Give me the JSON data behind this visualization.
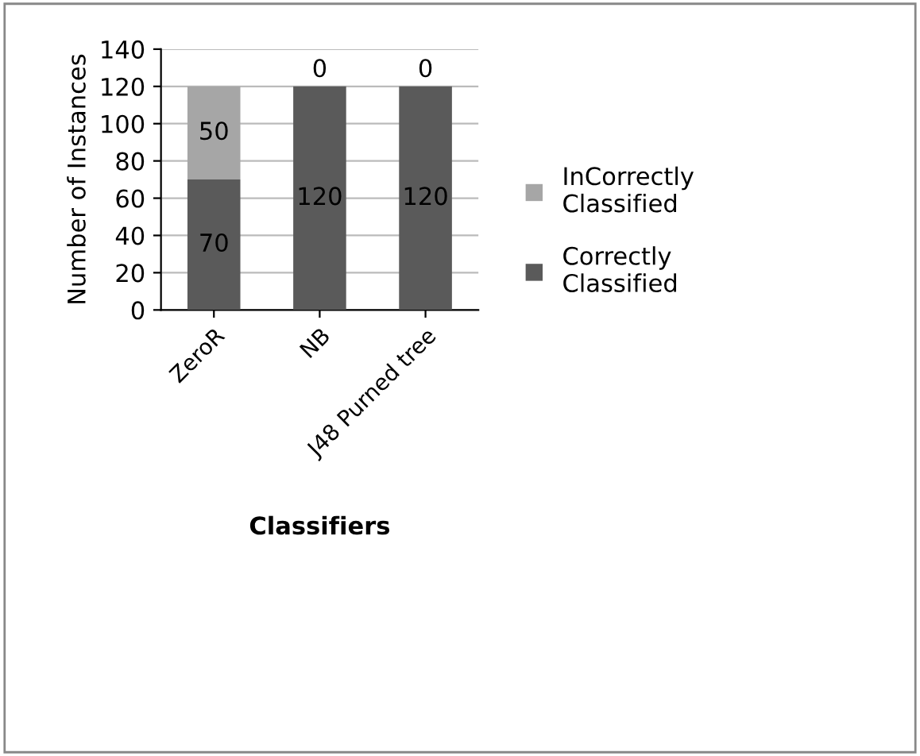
{
  "chart_data": {
    "type": "bar",
    "stacked": true,
    "xlabel": "Classifiers",
    "ylabel": "Number of Instances",
    "categories": [
      "ZeroR",
      "NB",
      "J48 Purned tree"
    ],
    "series": [
      {
        "name": "Correctly Classified",
        "color": "#5a5a5a",
        "values": [
          70,
          120,
          120
        ]
      },
      {
        "name": "InCorrectly Classified",
        "color": "#a6a6a6",
        "values": [
          50,
          0,
          0
        ]
      }
    ],
    "ylim": [
      0,
      140
    ],
    "yticks": [
      0,
      20,
      40,
      60,
      80,
      100,
      120,
      140
    ],
    "grid": "y",
    "legend": "right",
    "data_labels": true
  }
}
